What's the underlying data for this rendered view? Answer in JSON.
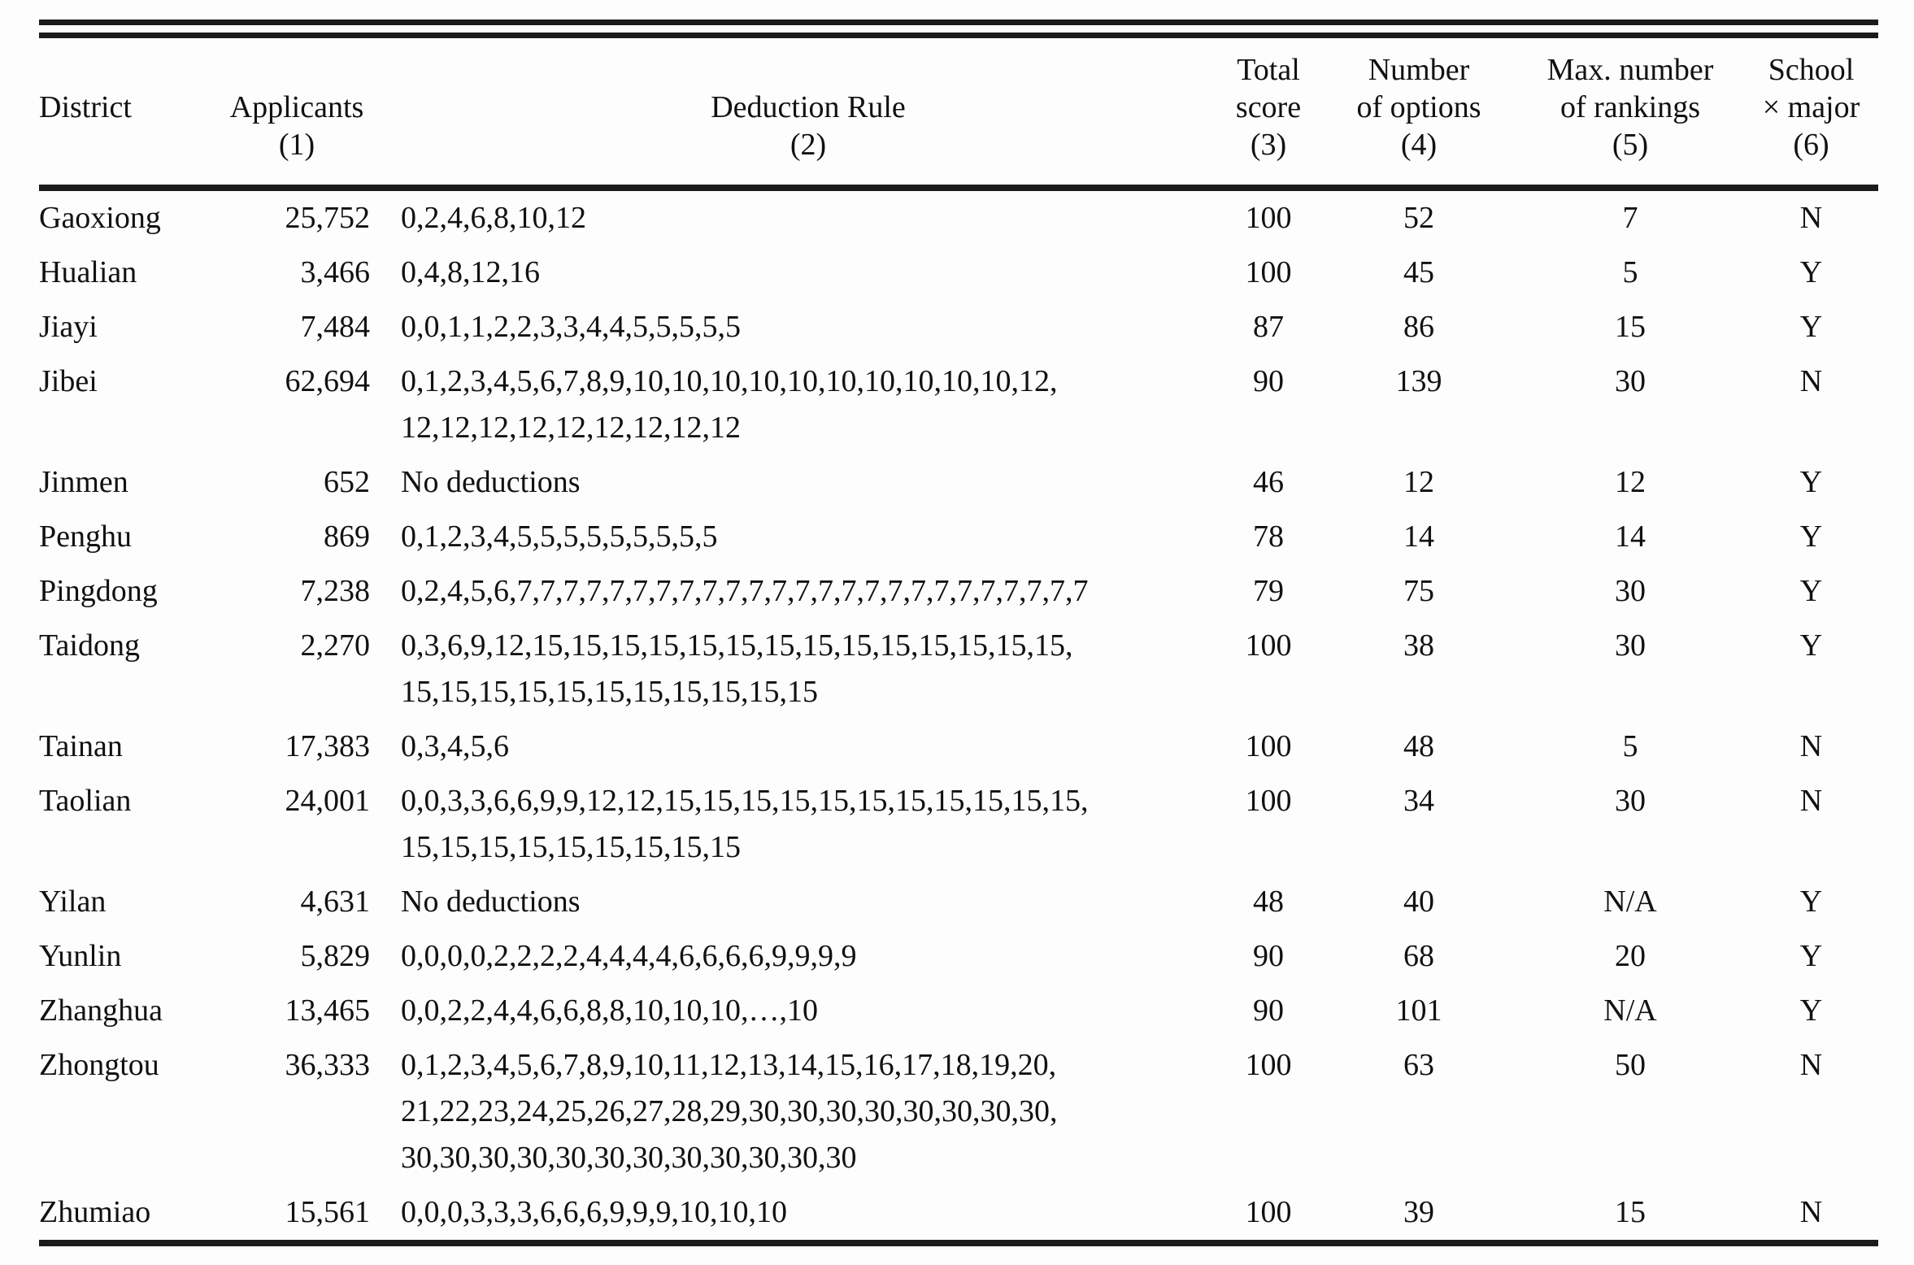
{
  "table": {
    "columns": [
      {
        "id": "district",
        "lines": [
          "",
          "District",
          ""
        ]
      },
      {
        "id": "applicants",
        "lines": [
          "",
          "Applicants",
          "(1)"
        ]
      },
      {
        "id": "deduction-rule",
        "lines": [
          "",
          "Deduction Rule",
          "(2)"
        ]
      },
      {
        "id": "total-score",
        "lines": [
          "Total",
          "score",
          "(3)"
        ]
      },
      {
        "id": "number-of-options",
        "lines": [
          "Number",
          "of options",
          "(4)"
        ]
      },
      {
        "id": "max-number-of-rankings",
        "lines": [
          "Max. number",
          "of rankings",
          "(5)"
        ]
      },
      {
        "id": "school-x-major",
        "lines": [
          "School",
          "× major",
          "(6)"
        ]
      }
    ],
    "rows": [
      {
        "district": "Gaoxiong",
        "applicants": "25,752",
        "deduction_rule": [
          "0,2,4,6,8,10,12"
        ],
        "total_score": "100",
        "num_options": "52",
        "max_rankings": "7",
        "school_x_major": "N"
      },
      {
        "district": "Hualian",
        "applicants": "3,466",
        "deduction_rule": [
          "0,4,8,12,16"
        ],
        "total_score": "100",
        "num_options": "45",
        "max_rankings": "5",
        "school_x_major": "Y"
      },
      {
        "district": "Jiayi",
        "applicants": "7,484",
        "deduction_rule": [
          "0,0,1,1,2,2,3,3,4,4,5,5,5,5,5"
        ],
        "total_score": "87",
        "num_options": "86",
        "max_rankings": "15",
        "school_x_major": "Y"
      },
      {
        "district": "Jibei",
        "applicants": "62,694",
        "deduction_rule": [
          "0,1,2,3,4,5,6,7,8,9,10,10,10,10,10,10,10,10,10,10,12,",
          "12,12,12,12,12,12,12,12,12"
        ],
        "total_score": "90",
        "num_options": "139",
        "max_rankings": "30",
        "school_x_major": "N"
      },
      {
        "district": "Jinmen",
        "applicants": "652",
        "deduction_rule": [
          "No deductions"
        ],
        "total_score": "46",
        "num_options": "12",
        "max_rankings": "12",
        "school_x_major": "Y"
      },
      {
        "district": "Penghu",
        "applicants": "869",
        "deduction_rule": [
          "0,1,2,3,4,5,5,5,5,5,5,5,5,5"
        ],
        "total_score": "78",
        "num_options": "14",
        "max_rankings": "14",
        "school_x_major": "Y"
      },
      {
        "district": "Pingdong",
        "applicants": "7,238",
        "deduction_rule": [
          "0,2,4,5,6,7,7,7,7,7,7,7,7,7,7,7,7,7,7,7,7,7,7,7,7,7,7,7,7,7"
        ],
        "total_score": "79",
        "num_options": "75",
        "max_rankings": "30",
        "school_x_major": "Y"
      },
      {
        "district": "Taidong",
        "applicants": "2,270",
        "deduction_rule": [
          "0,3,6,9,12,15,15,15,15,15,15,15,15,15,15,15,15,15,15,",
          "15,15,15,15,15,15,15,15,15,15,15"
        ],
        "total_score": "100",
        "num_options": "38",
        "max_rankings": "30",
        "school_x_major": "Y"
      },
      {
        "district": "Tainan",
        "applicants": "17,383",
        "deduction_rule": [
          "0,3,4,5,6"
        ],
        "total_score": "100",
        "num_options": "48",
        "max_rankings": "5",
        "school_x_major": "N"
      },
      {
        "district": "Taolian",
        "applicants": "24,001",
        "deduction_rule": [
          "0,0,3,3,6,6,9,9,12,12,15,15,15,15,15,15,15,15,15,15,15,",
          "15,15,15,15,15,15,15,15,15"
        ],
        "total_score": "100",
        "num_options": "34",
        "max_rankings": "30",
        "school_x_major": "N"
      },
      {
        "district": "Yilan",
        "applicants": "4,631",
        "deduction_rule": [
          "No deductions"
        ],
        "total_score": "48",
        "num_options": "40",
        "max_rankings": "N/A",
        "school_x_major": "Y"
      },
      {
        "district": "Yunlin",
        "applicants": "5,829",
        "deduction_rule": [
          "0,0,0,0,2,2,2,2,4,4,4,4,6,6,6,6,9,9,9,9"
        ],
        "total_score": "90",
        "num_options": "68",
        "max_rankings": "20",
        "school_x_major": "Y"
      },
      {
        "district": "Zhanghua",
        "applicants": "13,465",
        "deduction_rule": [
          "0,0,2,2,4,4,6,6,8,8,10,10,10,…,10"
        ],
        "total_score": "90",
        "num_options": "101",
        "max_rankings": "N/A",
        "school_x_major": "Y"
      },
      {
        "district": "Zhongtou",
        "applicants": "36,333",
        "deduction_rule": [
          "0,1,2,3,4,5,6,7,8,9,10,11,12,13,14,15,16,17,18,19,20,",
          "21,22,23,24,25,26,27,28,29,30,30,30,30,30,30,30,30,",
          "30,30,30,30,30,30,30,30,30,30,30,30"
        ],
        "total_score": "100",
        "num_options": "63",
        "max_rankings": "50",
        "school_x_major": "N"
      },
      {
        "district": "Zhumiao",
        "applicants": "15,561",
        "deduction_rule": [
          "0,0,0,3,3,3,6,6,6,9,9,9,10,10,10"
        ],
        "total_score": "100",
        "num_options": "39",
        "max_rankings": "15",
        "school_x_major": "N"
      }
    ]
  }
}
